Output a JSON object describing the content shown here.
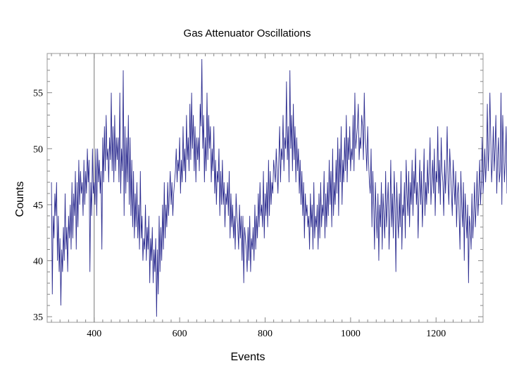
{
  "chart_data": {
    "type": "line",
    "title": "Gas Attenuator Oscillations",
    "xlabel": "Events",
    "ylabel": "Counts",
    "xlim": [
      290,
      1310
    ],
    "ylim": [
      34.5,
      58.5
    ],
    "x_ticks": [
      400,
      600,
      800,
      1000,
      1200
    ],
    "y_ticks": [
      35,
      40,
      45,
      50,
      55
    ],
    "x_tick_labels": [
      "400",
      "600",
      "800",
      "1000",
      "1200"
    ],
    "y_tick_labels": [
      "35",
      "40",
      "45",
      "50",
      "55"
    ],
    "vertical_marker_x": 400,
    "grid": false,
    "line_color": "#2b2b8f",
    "x_start": 300,
    "x_step": 2,
    "series": [
      {
        "values": [
          47,
          37,
          44,
          42,
          46,
          44,
          47,
          40,
          44,
          39,
          42,
          36,
          41,
          39,
          43,
          40,
          46,
          41,
          43,
          39,
          44,
          42,
          45,
          41,
          47,
          42,
          46,
          44,
          48,
          41,
          47,
          43,
          49,
          45,
          48,
          46,
          47,
          44,
          49,
          45,
          48,
          46,
          50,
          47,
          49,
          39,
          47,
          44,
          50,
          46,
          47,
          45,
          50,
          44,
          50,
          47,
          49,
          46,
          48,
          41,
          51,
          47,
          52,
          48,
          53,
          49,
          50,
          47,
          51,
          49,
          55,
          48,
          52,
          47,
          53,
          48,
          51,
          49,
          51,
          47,
          55,
          46,
          50,
          48,
          57,
          44,
          52,
          46,
          51,
          47,
          53,
          45,
          51,
          44,
          49,
          43,
          48,
          42,
          46,
          43,
          47,
          42,
          45,
          41,
          48,
          42,
          44,
          40,
          42,
          41,
          45,
          40,
          43,
          41,
          44,
          38,
          42,
          40,
          43,
          38,
          41,
          39,
          42,
          35,
          41,
          37,
          44,
          39,
          43,
          40,
          45,
          41,
          47,
          42,
          45,
          43,
          47,
          44,
          46,
          48,
          45,
          47,
          44,
          46,
          47,
          48,
          50,
          47,
          49,
          48,
          51,
          46,
          49,
          47,
          52,
          48,
          50,
          47,
          53,
          49,
          51,
          48,
          54,
          49,
          55,
          50,
          53,
          48,
          52,
          47,
          51,
          49,
          51,
          48,
          54,
          52,
          58,
          50,
          53,
          47,
          51,
          48,
          55,
          49,
          53,
          50,
          52,
          47,
          50,
          48,
          52,
          46,
          49,
          45,
          48,
          47,
          50,
          44,
          48,
          45,
          49,
          45,
          47,
          43,
          46,
          45,
          47,
          44,
          48,
          42,
          46,
          43,
          45,
          42,
          44,
          41,
          46,
          44,
          43,
          41,
          45,
          42,
          44,
          40,
          44,
          38,
          43,
          42,
          41,
          39,
          43,
          40,
          44,
          39,
          42,
          41,
          43,
          40,
          45,
          41,
          44,
          42,
          46,
          43,
          47,
          44,
          45,
          43,
          48,
          42,
          46,
          44,
          47,
          43,
          49,
          44,
          48,
          45,
          47,
          46,
          49,
          48,
          47,
          50,
          48,
          46,
          49,
          52,
          47,
          50,
          49,
          53,
          48,
          51,
          50,
          56,
          49,
          52,
          47,
          57,
          50,
          53,
          48,
          54,
          49,
          52,
          47,
          51,
          48,
          50,
          46,
          49,
          45,
          48,
          44,
          47,
          42,
          46,
          44,
          45,
          43,
          44,
          41,
          46,
          43,
          45,
          41,
          47,
          42,
          44,
          43,
          45,
          41,
          46,
          42,
          47,
          43,
          45,
          44,
          48,
          42,
          46,
          43,
          47,
          44,
          49,
          45,
          48,
          43,
          50,
          44,
          47,
          45,
          49,
          46,
          51,
          44,
          50,
          47,
          52,
          45,
          49,
          47,
          51,
          48,
          53,
          47,
          51,
          49,
          52,
          48,
          50,
          49,
          53,
          48,
          55,
          50,
          51,
          52,
          54,
          49,
          51,
          50,
          53,
          52,
          49,
          55,
          51,
          50,
          48,
          52,
          49,
          47,
          46,
          50,
          43,
          48,
          45,
          41,
          47,
          44,
          42,
          46,
          40,
          45,
          43,
          47,
          41,
          46,
          44,
          42,
          48,
          43,
          45,
          47,
          41,
          44,
          49,
          43,
          46,
          42,
          48,
          45,
          39,
          47,
          44,
          42,
          46,
          43,
          48,
          41,
          45,
          44,
          47,
          42,
          49,
          46,
          44,
          48,
          43,
          47,
          45,
          49,
          44,
          48,
          46,
          50,
          45,
          47,
          42,
          46,
          49,
          45,
          48,
          43,
          46,
          50,
          44,
          47,
          45,
          49,
          46,
          48,
          51,
          45,
          47,
          49,
          46,
          50,
          44,
          48,
          47,
          52,
          46,
          49,
          45,
          51,
          48,
          47,
          44,
          49,
          46,
          48,
          52,
          47,
          45,
          50,
          48,
          46,
          44,
          49,
          47,
          45,
          48,
          43,
          46,
          47,
          44,
          41,
          48,
          45,
          43,
          47,
          40,
          46,
          44,
          42,
          45,
          38,
          44,
          43,
          41,
          46,
          42,
          44,
          47,
          43,
          45,
          48,
          44,
          46,
          49,
          45,
          47,
          51,
          46,
          48,
          50,
          47,
          49,
          54,
          48,
          50,
          55,
          51,
          47,
          49,
          52,
          48,
          50,
          53,
          46,
          49,
          51,
          47,
          48,
          55,
          45,
          53,
          50,
          47,
          49,
          52,
          46,
          50
        ],
        "_note": ""
      }
    ]
  }
}
